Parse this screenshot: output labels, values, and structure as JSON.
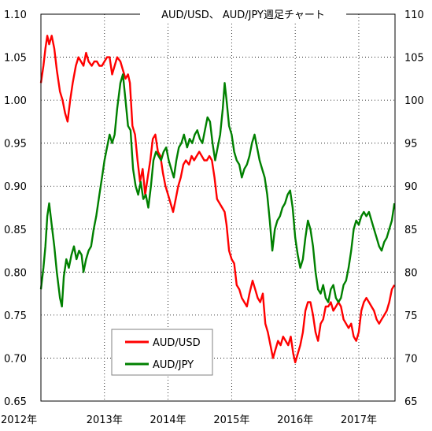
{
  "chart_data": {
    "type": "line",
    "title": "AUD/USD、 AUD/JPY週足チャート",
    "xlabel": "",
    "ylabel": "",
    "x_ticks": [
      "2012年",
      "2013年",
      "2014年",
      "2015年",
      "2016年",
      "2017年"
    ],
    "x_range": [
      2012.0,
      2017.57
    ],
    "y_left": {
      "range": [
        0.65,
        1.1
      ],
      "ticks": [
        "0.65",
        "0.70",
        "0.75",
        "0.80",
        "0.85",
        "0.90",
        "0.95",
        "1.00",
        "1.05",
        "1.10"
      ]
    },
    "y_right": {
      "range": [
        65,
        110
      ],
      "ticks": [
        "65",
        "70",
        "75",
        "80",
        "85",
        "90",
        "95",
        "100",
        "105",
        "110"
      ]
    },
    "grid": true,
    "legend": {
      "position": "bottom-left"
    },
    "series": [
      {
        "name": "AUD/USD",
        "axis": "left",
        "color": "#ff0000",
        "points": [
          [
            2012.0,
            1.02
          ],
          [
            2012.04,
            1.04
          ],
          [
            2012.07,
            1.06
          ],
          [
            2012.1,
            1.075
          ],
          [
            2012.13,
            1.065
          ],
          [
            2012.17,
            1.075
          ],
          [
            2012.21,
            1.06
          ],
          [
            2012.25,
            1.035
          ],
          [
            2012.3,
            1.01
          ],
          [
            2012.34,
            1.0
          ],
          [
            2012.38,
            0.985
          ],
          [
            2012.42,
            0.975
          ],
          [
            2012.46,
            1.0
          ],
          [
            2012.5,
            1.02
          ],
          [
            2012.55,
            1.04
          ],
          [
            2012.59,
            1.05
          ],
          [
            2012.63,
            1.045
          ],
          [
            2012.67,
            1.04
          ],
          [
            2012.71,
            1.055
          ],
          [
            2012.75,
            1.045
          ],
          [
            2012.8,
            1.04
          ],
          [
            2012.84,
            1.045
          ],
          [
            2012.88,
            1.045
          ],
          [
            2012.92,
            1.04
          ],
          [
            2012.96,
            1.04
          ],
          [
            2013.0,
            1.045
          ],
          [
            2013.04,
            1.05
          ],
          [
            2013.08,
            1.05
          ],
          [
            2013.12,
            1.03
          ],
          [
            2013.16,
            1.04
          ],
          [
            2013.2,
            1.05
          ],
          [
            2013.25,
            1.045
          ],
          [
            2013.29,
            1.035
          ],
          [
            2013.33,
            1.025
          ],
          [
            2013.37,
            1.03
          ],
          [
            2013.4,
            1.02
          ],
          [
            2013.44,
            0.97
          ],
          [
            2013.48,
            0.96
          ],
          [
            2013.52,
            0.93
          ],
          [
            2013.56,
            0.905
          ],
          [
            2013.6,
            0.92
          ],
          [
            2013.64,
            0.89
          ],
          [
            2013.68,
            0.91
          ],
          [
            2013.72,
            0.93
          ],
          [
            2013.76,
            0.955
          ],
          [
            2013.8,
            0.96
          ],
          [
            2013.84,
            0.94
          ],
          [
            2013.88,
            0.935
          ],
          [
            2013.92,
            0.915
          ],
          [
            2013.96,
            0.9
          ],
          [
            2014.0,
            0.89
          ],
          [
            2014.04,
            0.88
          ],
          [
            2014.08,
            0.87
          ],
          [
            2014.12,
            0.885
          ],
          [
            2014.16,
            0.9
          ],
          [
            2014.2,
            0.91
          ],
          [
            2014.24,
            0.925
          ],
          [
            2014.28,
            0.93
          ],
          [
            2014.33,
            0.925
          ],
          [
            2014.37,
            0.935
          ],
          [
            2014.41,
            0.93
          ],
          [
            2014.45,
            0.935
          ],
          [
            2014.49,
            0.94
          ],
          [
            2014.53,
            0.935
          ],
          [
            2014.57,
            0.93
          ],
          [
            2014.61,
            0.93
          ],
          [
            2014.65,
            0.935
          ],
          [
            2014.69,
            0.93
          ],
          [
            2014.73,
            0.91
          ],
          [
            2014.77,
            0.885
          ],
          [
            2014.81,
            0.88
          ],
          [
            2014.85,
            0.875
          ],
          [
            2014.89,
            0.87
          ],
          [
            2014.92,
            0.855
          ],
          [
            2014.96,
            0.825
          ],
          [
            2015.0,
            0.815
          ],
          [
            2015.04,
            0.81
          ],
          [
            2015.08,
            0.785
          ],
          [
            2015.12,
            0.78
          ],
          [
            2015.16,
            0.77
          ],
          [
            2015.2,
            0.765
          ],
          [
            2015.24,
            0.76
          ],
          [
            2015.28,
            0.775
          ],
          [
            2015.33,
            0.79
          ],
          [
            2015.37,
            0.78
          ],
          [
            2015.41,
            0.77
          ],
          [
            2015.45,
            0.765
          ],
          [
            2015.49,
            0.775
          ],
          [
            2015.53,
            0.74
          ],
          [
            2015.57,
            0.73
          ],
          [
            2015.61,
            0.715
          ],
          [
            2015.65,
            0.7
          ],
          [
            2015.69,
            0.71
          ],
          [
            2015.73,
            0.72
          ],
          [
            2015.77,
            0.715
          ],
          [
            2015.81,
            0.725
          ],
          [
            2015.85,
            0.72
          ],
          [
            2015.89,
            0.715
          ],
          [
            2015.93,
            0.725
          ],
          [
            2015.97,
            0.705
          ],
          [
            2016.0,
            0.695
          ],
          [
            2016.04,
            0.705
          ],
          [
            2016.08,
            0.715
          ],
          [
            2016.12,
            0.73
          ],
          [
            2016.16,
            0.755
          ],
          [
            2016.2,
            0.765
          ],
          [
            2016.24,
            0.765
          ],
          [
            2016.28,
            0.75
          ],
          [
            2016.32,
            0.73
          ],
          [
            2016.36,
            0.72
          ],
          [
            2016.4,
            0.74
          ],
          [
            2016.44,
            0.745
          ],
          [
            2016.48,
            0.76
          ],
          [
            2016.52,
            0.76
          ],
          [
            2016.56,
            0.765
          ],
          [
            2016.6,
            0.755
          ],
          [
            2016.64,
            0.76
          ],
          [
            2016.68,
            0.765
          ],
          [
            2016.72,
            0.76
          ],
          [
            2016.76,
            0.745
          ],
          [
            2016.8,
            0.74
          ],
          [
            2016.84,
            0.735
          ],
          [
            2016.88,
            0.74
          ],
          [
            2016.92,
            0.725
          ],
          [
            2016.96,
            0.72
          ],
          [
            2017.0,
            0.73
          ],
          [
            2017.04,
            0.755
          ],
          [
            2017.08,
            0.765
          ],
          [
            2017.12,
            0.77
          ],
          [
            2017.16,
            0.765
          ],
          [
            2017.2,
            0.76
          ],
          [
            2017.24,
            0.755
          ],
          [
            2017.28,
            0.745
          ],
          [
            2017.32,
            0.74
          ],
          [
            2017.36,
            0.745
          ],
          [
            2017.4,
            0.75
          ],
          [
            2017.44,
            0.755
          ],
          [
            2017.48,
            0.765
          ],
          [
            2017.52,
            0.78
          ],
          [
            2017.56,
            0.785
          ]
        ]
      },
      {
        "name": "AUD/JPY",
        "axis": "right",
        "color": "#008000",
        "points": [
          [
            2012.0,
            78.0
          ],
          [
            2012.04,
            80.5
          ],
          [
            2012.07,
            83.0
          ],
          [
            2012.1,
            86.5
          ],
          [
            2012.13,
            88.0
          ],
          [
            2012.17,
            85.5
          ],
          [
            2012.21,
            83.0
          ],
          [
            2012.25,
            80.0
          ],
          [
            2012.3,
            77.0
          ],
          [
            2012.33,
            76.0
          ],
          [
            2012.36,
            79.5
          ],
          [
            2012.4,
            81.5
          ],
          [
            2012.44,
            80.5
          ],
          [
            2012.48,
            82.0
          ],
          [
            2012.52,
            83.0
          ],
          [
            2012.56,
            81.5
          ],
          [
            2012.6,
            82.5
          ],
          [
            2012.64,
            82.0
          ],
          [
            2012.67,
            80.0
          ],
          [
            2012.71,
            81.5
          ],
          [
            2012.75,
            82.5
          ],
          [
            2012.79,
            83.0
          ],
          [
            2012.83,
            85.0
          ],
          [
            2012.87,
            86.5
          ],
          [
            2012.92,
            89.0
          ],
          [
            2012.96,
            91.0
          ],
          [
            2013.0,
            93.0
          ],
          [
            2013.04,
            94.5
          ],
          [
            2013.08,
            96.0
          ],
          [
            2013.12,
            95.0
          ],
          [
            2013.16,
            96.0
          ],
          [
            2013.2,
            99.0
          ],
          [
            2013.25,
            102.0
          ],
          [
            2013.29,
            103.0
          ],
          [
            2013.33,
            100.0
          ],
          [
            2013.37,
            97.0
          ],
          [
            2013.41,
            96.5
          ],
          [
            2013.45,
            92.0
          ],
          [
            2013.49,
            90.0
          ],
          [
            2013.53,
            89.0
          ],
          [
            2013.57,
            90.5
          ],
          [
            2013.61,
            88.5
          ],
          [
            2013.65,
            89.0
          ],
          [
            2013.69,
            87.5
          ],
          [
            2013.73,
            90.0
          ],
          [
            2013.77,
            93.0
          ],
          [
            2013.81,
            94.0
          ],
          [
            2013.85,
            93.5
          ],
          [
            2013.89,
            93.0
          ],
          [
            2013.93,
            94.0
          ],
          [
            2013.97,
            94.5
          ],
          [
            2014.01,
            93.0
          ],
          [
            2014.05,
            92.0
          ],
          [
            2014.09,
            91.0
          ],
          [
            2014.13,
            93.0
          ],
          [
            2014.17,
            94.5
          ],
          [
            2014.21,
            95.0
          ],
          [
            2014.25,
            96.0
          ],
          [
            2014.3,
            94.5
          ],
          [
            2014.34,
            95.5
          ],
          [
            2014.38,
            95.0
          ],
          [
            2014.42,
            96.0
          ],
          [
            2014.46,
            96.5
          ],
          [
            2014.5,
            95.5
          ],
          [
            2014.54,
            95.0
          ],
          [
            2014.58,
            96.5
          ],
          [
            2014.62,
            98.0
          ],
          [
            2014.66,
            97.5
          ],
          [
            2014.7,
            95.0
          ],
          [
            2014.74,
            93.0
          ],
          [
            2014.78,
            94.5
          ],
          [
            2014.82,
            96.0
          ],
          [
            2014.86,
            99.0
          ],
          [
            2014.89,
            102.0
          ],
          [
            2014.92,
            100.0
          ],
          [
            2014.96,
            97.0
          ],
          [
            2015.0,
            96.0
          ],
          [
            2015.04,
            94.0
          ],
          [
            2015.08,
            93.0
          ],
          [
            2015.12,
            92.5
          ],
          [
            2015.16,
            91.0
          ],
          [
            2015.2,
            92.0
          ],
          [
            2015.24,
            92.5
          ],
          [
            2015.28,
            93.5
          ],
          [
            2015.32,
            95.0
          ],
          [
            2015.36,
            96.0
          ],
          [
            2015.4,
            94.5
          ],
          [
            2015.44,
            93.0
          ],
          [
            2015.48,
            92.0
          ],
          [
            2015.52,
            91.0
          ],
          [
            2015.56,
            89.0
          ],
          [
            2015.6,
            86.0
          ],
          [
            2015.64,
            82.5
          ],
          [
            2015.68,
            85.0
          ],
          [
            2015.72,
            86.0
          ],
          [
            2015.76,
            86.5
          ],
          [
            2015.8,
            87.5
          ],
          [
            2015.84,
            88.0
          ],
          [
            2015.88,
            89.0
          ],
          [
            2015.92,
            89.5
          ],
          [
            2015.96,
            87.5
          ],
          [
            2016.0,
            84.0
          ],
          [
            2016.04,
            82.0
          ],
          [
            2016.08,
            80.5
          ],
          [
            2016.12,
            81.5
          ],
          [
            2016.16,
            84.0
          ],
          [
            2016.2,
            86.0
          ],
          [
            2016.24,
            85.0
          ],
          [
            2016.28,
            83.0
          ],
          [
            2016.32,
            80.0
          ],
          [
            2016.36,
            78.0
          ],
          [
            2016.4,
            77.5
          ],
          [
            2016.44,
            78.5
          ],
          [
            2016.48,
            77.0
          ],
          [
            2016.52,
            76.5
          ],
          [
            2016.56,
            78.0
          ],
          [
            2016.6,
            78.5
          ],
          [
            2016.64,
            77.0
          ],
          [
            2016.68,
            76.5
          ],
          [
            2016.72,
            77.0
          ],
          [
            2016.76,
            78.5
          ],
          [
            2016.8,
            79.0
          ],
          [
            2016.84,
            80.5
          ],
          [
            2016.88,
            82.5
          ],
          [
            2016.92,
            85.0
          ],
          [
            2016.96,
            86.0
          ],
          [
            2017.0,
            85.5
          ],
          [
            2017.04,
            86.5
          ],
          [
            2017.08,
            87.0
          ],
          [
            2017.12,
            86.5
          ],
          [
            2017.16,
            87.0
          ],
          [
            2017.2,
            86.0
          ],
          [
            2017.24,
            85.0
          ],
          [
            2017.28,
            84.0
          ],
          [
            2017.32,
            83.0
          ],
          [
            2017.36,
            82.5
          ],
          [
            2017.4,
            83.5
          ],
          [
            2017.44,
            84.0
          ],
          [
            2017.48,
            85.0
          ],
          [
            2017.52,
            86.0
          ],
          [
            2017.56,
            88.0
          ]
        ]
      }
    ]
  }
}
